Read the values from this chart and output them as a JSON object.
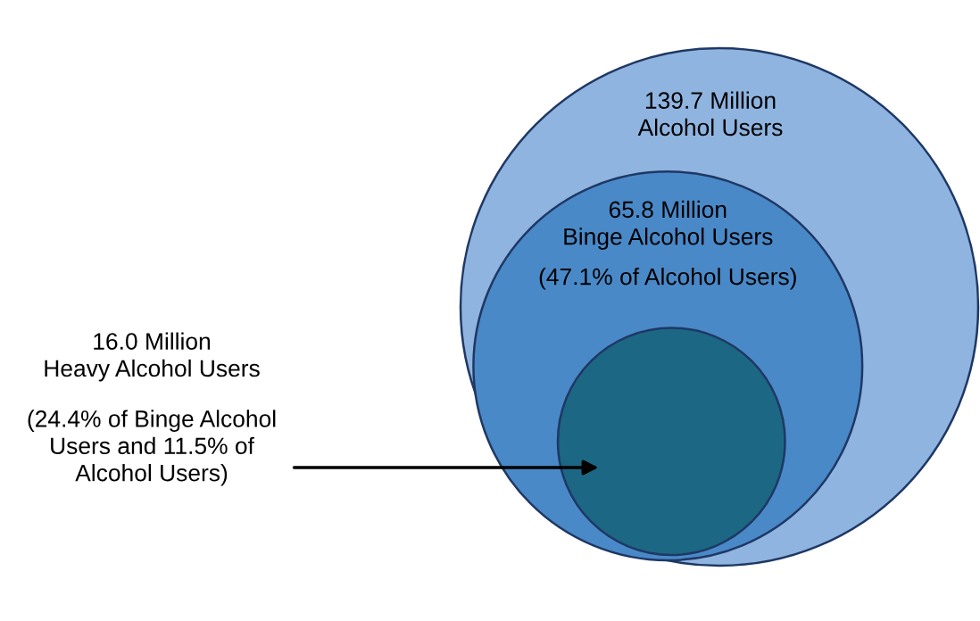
{
  "chart_data": {
    "type": "other",
    "categories": [
      "Alcohol Users",
      "Binge Alcohol Users",
      "Heavy Alcohol Users"
    ],
    "values": [
      139.7,
      65.8,
      16.0
    ],
    "value_labels": [
      "139.7 Million",
      "65.8 Million",
      "16.0 Million"
    ],
    "colors": [
      "#8fb4e0",
      "#4a89c8",
      "#1c6884"
    ],
    "annotations": [
      "(47.1% of Alcohol Users)",
      "(24.4% of Binge Alcohol\nUsers and 11.5% of\nAlcohol Users)"
    ]
  }
}
